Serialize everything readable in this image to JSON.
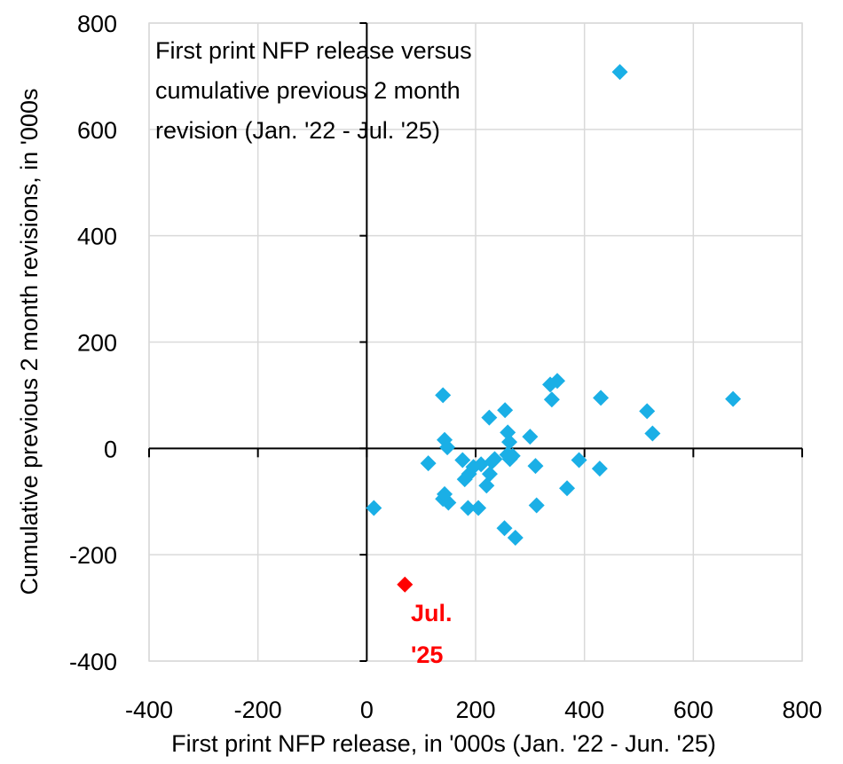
{
  "chart_data": {
    "type": "scatter",
    "title_lines": [
      "First print NFP release versus",
      "cumulative previous 2 month",
      "revision (Jan. '22 - Jul. '25)"
    ],
    "xlabel": "First print NFP release, in '000s (Jan. '22 - Jun. '25)",
    "ylabel": "Cumulative previous 2 month revisions, in '000s",
    "xlim": [
      -400,
      800
    ],
    "ylim": [
      -400,
      800
    ],
    "xticks": [
      "-400",
      "-200",
      "0",
      "200",
      "400",
      "600",
      "800"
    ],
    "yticks": [
      "800",
      "600",
      "400",
      "200",
      "0",
      "-200",
      "-400"
    ],
    "grid": true,
    "series": [
      {
        "color": "#1AAFE6",
        "points": [
          [
            465,
            708
          ],
          [
            350,
            127
          ],
          [
            337,
            120
          ],
          [
            340,
            92
          ],
          [
            430,
            95
          ],
          [
            515,
            70
          ],
          [
            525,
            28
          ],
          [
            673,
            93
          ],
          [
            140,
            100
          ],
          [
            143,
            16
          ],
          [
            148,
            2
          ],
          [
            113,
            -28
          ],
          [
            176,
            -22
          ],
          [
            196,
            -35
          ],
          [
            210,
            -30
          ],
          [
            188,
            -48
          ],
          [
            180,
            -58
          ],
          [
            225,
            58
          ],
          [
            254,
            72
          ],
          [
            259,
            30
          ],
          [
            262,
            12
          ],
          [
            258,
            -12
          ],
          [
            263,
            -20
          ],
          [
            268,
            -14
          ],
          [
            300,
            22
          ],
          [
            310,
            -33
          ],
          [
            390,
            -22
          ],
          [
            428,
            -38
          ],
          [
            368,
            -75
          ],
          [
            312,
            -107
          ],
          [
            226,
            -48
          ],
          [
            235,
            -20
          ],
          [
            230,
            -25
          ],
          [
            220,
            -70
          ],
          [
            205,
            -112
          ],
          [
            186,
            -112
          ],
          [
            253,
            -150
          ],
          [
            273,
            -168
          ],
          [
            150,
            -102
          ],
          [
            140,
            -95
          ],
          [
            143,
            -86
          ],
          [
            13,
            -112
          ]
        ]
      },
      {
        "color": "#FF0000",
        "points": [
          [
            70,
            -256
          ]
        ]
      }
    ],
    "annotation": {
      "text_lines": [
        "Jul.",
        "'25"
      ],
      "color": "#FF0000"
    }
  }
}
